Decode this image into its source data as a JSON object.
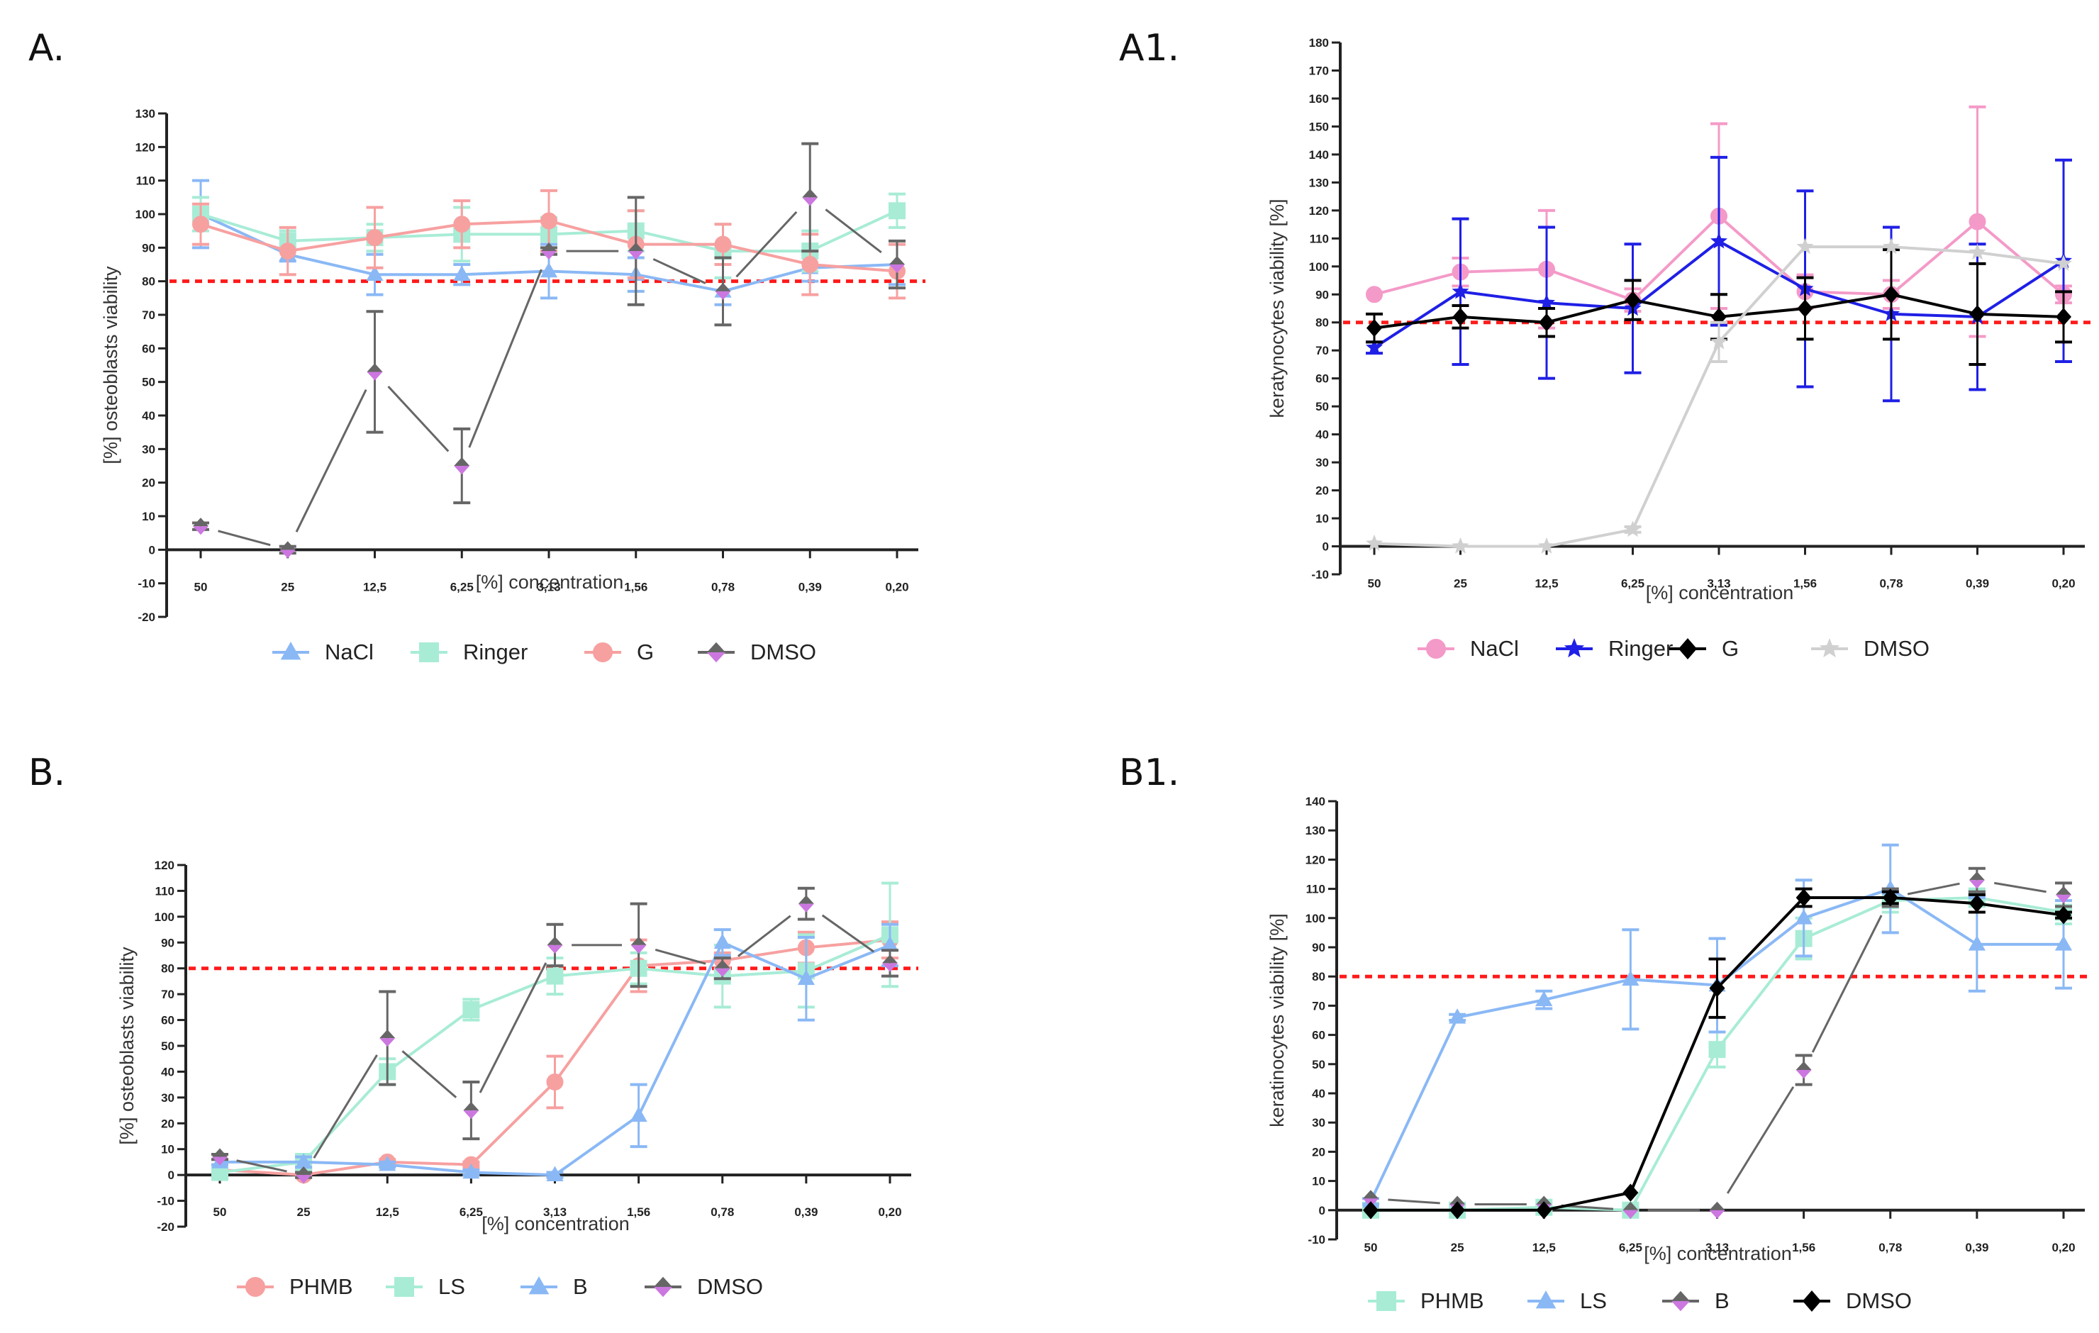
{
  "chart_data": [
    {
      "id": "A",
      "panel_label": "A.",
      "type": "line",
      "ylabel": "[%] osteoblasts viability",
      "xlabel": "[%] concentration",
      "categories": [
        "50",
        "25",
        "12,5",
        "6,25",
        "3,13",
        "1,56",
        "0,78",
        "0,39",
        "0,20"
      ],
      "ylim": [
        -20,
        130
      ],
      "ytick_step": 10,
      "threshold": 80,
      "threshold_color": "#ff1a1a",
      "legend_position": "bottom",
      "series": [
        {
          "name": "NaCl",
          "color": "#8ab8f5",
          "marker": "triangle",
          "dashed": false,
          "values": [
            100,
            88,
            82,
            82,
            83,
            82,
            77,
            84,
            85
          ],
          "errors": [
            10,
            2,
            6,
            3,
            8,
            5,
            4,
            4,
            6
          ]
        },
        {
          "name": "Ringer",
          "color": "#a8ecd6",
          "marker": "square",
          "dashed": false,
          "values": [
            100,
            92,
            93,
            94,
            94,
            95,
            89,
            89,
            101
          ],
          "errors": [
            5,
            3,
            4,
            8,
            5,
            6,
            8,
            6,
            5
          ]
        },
        {
          "name": "G",
          "color": "#f7a0a0",
          "marker": "circle",
          "dashed": false,
          "values": [
            97,
            89,
            93,
            97,
            98,
            91,
            91,
            85,
            83
          ],
          "errors": [
            6,
            7,
            9,
            7,
            9,
            10,
            6,
            9,
            8
          ]
        },
        {
          "name": "DMSO",
          "color": "#666666",
          "fill": "#cc77e0",
          "marker": "diamond",
          "dashed": true,
          "values": [
            7,
            0,
            53,
            25,
            89,
            89,
            77,
            105,
            85
          ],
          "errors": [
            1,
            1,
            18,
            11,
            1,
            16,
            10,
            16,
            7
          ]
        }
      ]
    },
    {
      "id": "A1",
      "panel_label": "A1.",
      "type": "line",
      "ylabel": "keratynocytes viability [%]",
      "xlabel": "[%] concentration",
      "categories": [
        "50",
        "25",
        "12,5",
        "6,25",
        "3,13",
        "1,56",
        "0,78",
        "0,39",
        "0,20"
      ],
      "ylim": [
        -10,
        180
      ],
      "ytick_step": 10,
      "threshold": 80,
      "threshold_color": "#ff1a1a",
      "legend_position": "bottom",
      "series": [
        {
          "name": "NaCl",
          "color": "#f49ac8",
          "marker": "circle",
          "dashed": false,
          "values": [
            90,
            98,
            99,
            88,
            118,
            91,
            90,
            116,
            90
          ],
          "errors": [
            0,
            5,
            21,
            4,
            33,
            6,
            5,
            41,
            3
          ]
        },
        {
          "name": "Ringer",
          "color": "#1f1fe6",
          "marker": "star",
          "dashed": false,
          "values": [
            71,
            91,
            87,
            85,
            109,
            92,
            83,
            82,
            102
          ],
          "errors": [
            2,
            26,
            27,
            23,
            30,
            35,
            31,
            26,
            36
          ]
        },
        {
          "name": "G",
          "color": "#000000",
          "marker": "diamond",
          "dashed": false,
          "values": [
            78,
            82,
            80,
            88,
            82,
            85,
            90,
            83,
            82
          ],
          "errors": [
            5,
            4,
            5,
            7,
            8,
            11,
            16,
            18,
            9
          ]
        },
        {
          "name": "DMSO",
          "color": "#d0d0d0",
          "marker": "star",
          "dashed": false,
          "values": [
            1,
            0,
            0,
            6,
            73,
            107,
            107,
            105,
            101
          ],
          "errors": [
            0,
            0,
            0,
            1,
            7,
            0,
            0,
            0,
            0
          ]
        }
      ]
    },
    {
      "id": "B",
      "panel_label": "B.",
      "type": "line",
      "ylabel": "[%] osteoblasts viability",
      "xlabel": "[%] concentration",
      "categories": [
        "50",
        "25",
        "12,5",
        "6,25",
        "3,13",
        "1,56",
        "0,78",
        "0,39",
        "0,20"
      ],
      "ylim": [
        -20,
        120
      ],
      "ytick_step": 10,
      "threshold": 80,
      "threshold_color": "#ff1a1a",
      "legend_position": "bottom",
      "series": [
        {
          "name": "PHMB",
          "color": "#f7a0a0",
          "marker": "circle",
          "dashed": false,
          "values": [
            2,
            0,
            5,
            4,
            36,
            81,
            83,
            88,
            91
          ],
          "errors": [
            1,
            1,
            1,
            1,
            10,
            10,
            3,
            6,
            7
          ]
        },
        {
          "name": "LS",
          "color": "#a8ecd6",
          "marker": "square",
          "dashed": false,
          "values": [
            1,
            5,
            40,
            64,
            77,
            80,
            77,
            79,
            93
          ],
          "errors": [
            1,
            3,
            5,
            4,
            7,
            6,
            12,
            14,
            20
          ]
        },
        {
          "name": "B",
          "color": "#8ab8f5",
          "marker": "triangle",
          "dashed": false,
          "values": [
            5,
            5,
            4,
            1,
            0,
            23,
            90,
            76,
            89
          ],
          "errors": [
            1,
            2,
            1,
            1,
            1,
            12,
            5,
            16,
            8
          ]
        },
        {
          "name": "DMSO",
          "color": "#666666",
          "fill": "#cc77e0",
          "marker": "diamond",
          "dashed": true,
          "values": [
            7,
            0,
            53,
            25,
            89,
            89,
            80,
            105,
            82
          ],
          "errors": [
            1,
            1,
            18,
            11,
            8,
            16,
            4,
            6,
            5
          ]
        }
      ]
    },
    {
      "id": "B1",
      "panel_label": "B1.",
      "type": "line",
      "ylabel": "keratinocytes viability [%]",
      "xlabel": "[%] concentration",
      "categories": [
        "50",
        "25",
        "12,5",
        "6,25",
        "3,13",
        "1,56",
        "0,78",
        "0,39",
        "0,20"
      ],
      "ylim": [
        -10,
        140
      ],
      "ytick_step": 10,
      "threshold": 80,
      "threshold_color": "#ff1a1a",
      "legend_position": "bottom",
      "series": [
        {
          "name": "PHMB",
          "color": "#a8ecd6",
          "marker": "square",
          "dashed": false,
          "values": [
            0,
            0,
            1,
            0,
            55,
            93,
            106,
            107,
            102
          ],
          "errors": [
            0,
            0,
            1,
            0,
            6,
            7,
            4,
            3,
            4
          ]
        },
        {
          "name": "LS",
          "color": "#8ab8f5",
          "marker": "triangle",
          "dashed": false,
          "values": [
            3,
            66,
            72,
            79,
            77,
            100,
            110,
            91,
            91
          ],
          "errors": [
            1,
            1,
            3,
            17,
            16,
            13,
            15,
            16,
            15
          ]
        },
        {
          "name": "B",
          "color": "#666666",
          "fill": "#cc77e0",
          "marker": "diamond",
          "dashed": true,
          "values": [
            4,
            2,
            2,
            0,
            0,
            48,
            107,
            113,
            108
          ],
          "errors": [
            0,
            0,
            0,
            0,
            0,
            5,
            3,
            4,
            4
          ]
        },
        {
          "name": "DMSO",
          "color": "#000000",
          "marker": "diamond",
          "dashed": false,
          "values": [
            0,
            0,
            0,
            6,
            76,
            107,
            107,
            105,
            101
          ],
          "errors": [
            0,
            0,
            0,
            0,
            10,
            3,
            2,
            3,
            1
          ]
        }
      ]
    }
  ]
}
